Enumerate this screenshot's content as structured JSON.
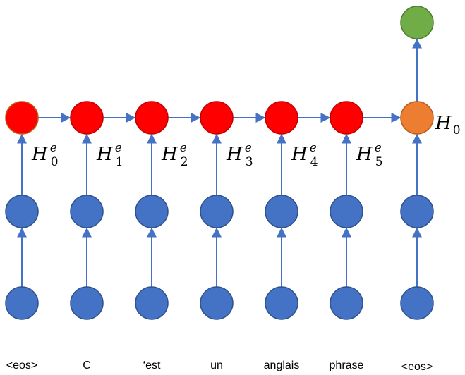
{
  "columns": [
    {
      "word": "<eos>",
      "hidden": {
        "base": "H",
        "sub": "0",
        "sup": "e"
      }
    },
    {
      "word": "C",
      "hidden": {
        "base": "H",
        "sub": "1",
        "sup": "e"
      }
    },
    {
      "word": "‘est",
      "hidden": {
        "base": "H",
        "sub": "2",
        "sup": "e"
      }
    },
    {
      "word": "un",
      "hidden": {
        "base": "H",
        "sub": "3",
        "sup": "e"
      }
    },
    {
      "word": "anglais",
      "hidden": {
        "base": "H",
        "sub": "4",
        "sup": "e"
      }
    },
    {
      "word": "phrase",
      "hidden": {
        "base": "H",
        "sub": "5",
        "sup": "e"
      }
    },
    {
      "word": "<eos>",
      "hidden": {
        "base": "H",
        "sub": "0",
        "sup": ""
      }
    }
  ],
  "colors": {
    "input_node": "#4472C4",
    "embed_node": "#4472C4",
    "encoder_hidden": "#FF0000",
    "encoder_hidden_first_outline": "#C55A11",
    "decoder_hidden": "#ED7D31",
    "output_node": "#70AD47",
    "arrow": "#4472C4"
  }
}
